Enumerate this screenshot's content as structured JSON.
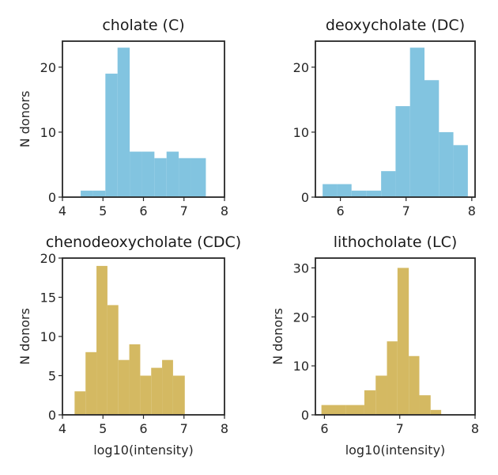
{
  "chart_data": [
    {
      "type": "bar",
      "title": "cholate (C)",
      "xlabel": "",
      "ylabel": "N donors",
      "color": "#82C4E0",
      "xlim": [
        4,
        8
      ],
      "ylim": [
        0,
        24
      ],
      "xticks": [
        4,
        5,
        6,
        7,
        8
      ],
      "yticks": [
        0,
        10,
        20
      ],
      "bins": [
        {
          "x0": 4.45,
          "x1": 4.75,
          "count": 1
        },
        {
          "x0": 4.75,
          "x1": 5.06,
          "count": 1
        },
        {
          "x0": 5.06,
          "x1": 5.36,
          "count": 19
        },
        {
          "x0": 5.36,
          "x1": 5.66,
          "count": 23
        },
        {
          "x0": 5.66,
          "x1": 5.96,
          "count": 7
        },
        {
          "x0": 5.96,
          "x1": 6.27,
          "count": 7
        },
        {
          "x0": 6.27,
          "x1": 6.57,
          "count": 6
        },
        {
          "x0": 6.57,
          "x1": 6.87,
          "count": 7
        },
        {
          "x0": 6.87,
          "x1": 7.18,
          "count": 6
        },
        {
          "x0": 7.18,
          "x1": 7.54,
          "count": 6
        }
      ]
    },
    {
      "type": "bar",
      "title": "deoxycholate (DC)",
      "xlabel": "",
      "ylabel": "",
      "color": "#82C4E0",
      "xlim": [
        5.62,
        8.05
      ],
      "ylim": [
        0,
        24
      ],
      "xticks": [
        6,
        7,
        8
      ],
      "yticks": [
        0,
        10,
        20
      ],
      "bins": [
        {
          "x0": 5.73,
          "x1": 5.95,
          "count": 2
        },
        {
          "x0": 5.95,
          "x1": 6.17,
          "count": 2
        },
        {
          "x0": 6.17,
          "x1": 6.4,
          "count": 1
        },
        {
          "x0": 6.4,
          "x1": 6.62,
          "count": 1
        },
        {
          "x0": 6.62,
          "x1": 6.84,
          "count": 4
        },
        {
          "x0": 6.84,
          "x1": 7.06,
          "count": 14
        },
        {
          "x0": 7.06,
          "x1": 7.28,
          "count": 23
        },
        {
          "x0": 7.28,
          "x1": 7.5,
          "count": 18
        },
        {
          "x0": 7.5,
          "x1": 7.72,
          "count": 10
        },
        {
          "x0": 7.72,
          "x1": 7.94,
          "count": 8
        }
      ]
    },
    {
      "type": "bar",
      "title": "chenodeoxycholate (CDC)",
      "xlabel": "log10(intensity)",
      "ylabel": "N donors",
      "color": "#D4B962",
      "xlim": [
        4,
        8
      ],
      "ylim": [
        0,
        20
      ],
      "xticks": [
        4,
        5,
        6,
        7,
        8
      ],
      "yticks": [
        0,
        5,
        10,
        15,
        20
      ],
      "bins": [
        {
          "x0": 4.3,
          "x1": 4.57,
          "count": 3
        },
        {
          "x0": 4.57,
          "x1": 4.84,
          "count": 8
        },
        {
          "x0": 4.84,
          "x1": 5.11,
          "count": 19
        },
        {
          "x0": 5.11,
          "x1": 5.38,
          "count": 14
        },
        {
          "x0": 5.38,
          "x1": 5.65,
          "count": 7
        },
        {
          "x0": 5.65,
          "x1": 5.92,
          "count": 9
        },
        {
          "x0": 5.92,
          "x1": 6.19,
          "count": 5
        },
        {
          "x0": 6.19,
          "x1": 6.46,
          "count": 6
        },
        {
          "x0": 6.46,
          "x1": 6.73,
          "count": 7
        },
        {
          "x0": 6.73,
          "x1": 7.02,
          "count": 5
        }
      ]
    },
    {
      "type": "bar",
      "title": "lithocholate (LC)",
      "xlabel": "log10(intensity)",
      "ylabel": "N donors",
      "color": "#D4B962",
      "xlim": [
        5.88,
        8.0
      ],
      "ylim": [
        0,
        32
      ],
      "xticks": [
        6,
        7,
        8
      ],
      "yticks": [
        0,
        10,
        20,
        30
      ],
      "bins": [
        {
          "x0": 5.96,
          "x1": 6.28,
          "count": 2
        },
        {
          "x0": 6.28,
          "x1": 6.53,
          "count": 2
        },
        {
          "x0": 6.53,
          "x1": 6.68,
          "count": 5
        },
        {
          "x0": 6.68,
          "x1": 6.83,
          "count": 8
        },
        {
          "x0": 6.83,
          "x1": 6.97,
          "count": 15
        },
        {
          "x0": 6.97,
          "x1": 7.12,
          "count": 30
        },
        {
          "x0": 7.12,
          "x1": 7.26,
          "count": 12
        },
        {
          "x0": 7.26,
          "x1": 7.41,
          "count": 4
        },
        {
          "x0": 7.41,
          "x1": 7.55,
          "count": 1
        }
      ]
    }
  ]
}
